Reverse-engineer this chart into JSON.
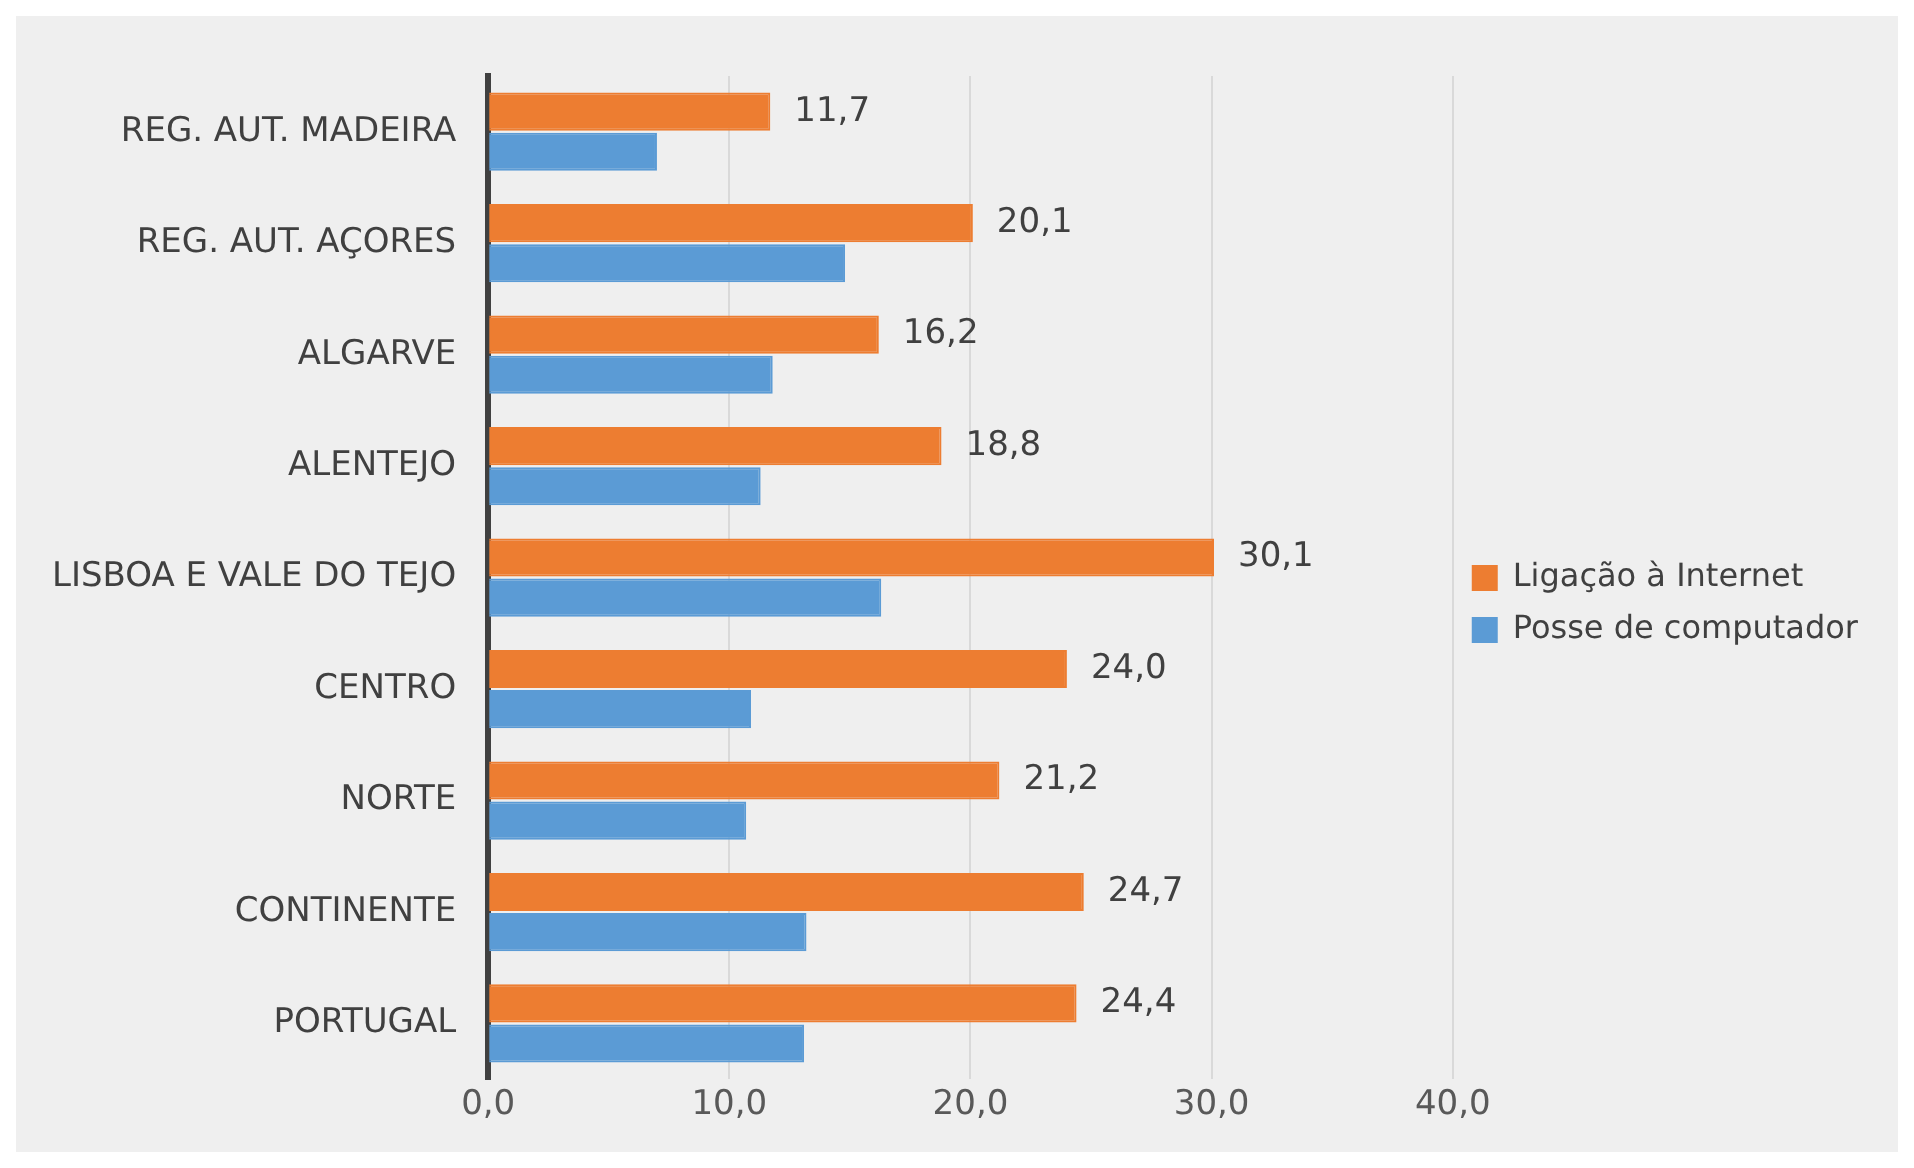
{
  "chart_data": {
    "type": "bar",
    "orientation": "horizontal",
    "categories": [
      "REG. AUT. MADEIRA",
      "REG. AUT. AÇORES",
      "ALGARVE",
      "ALENTEJO",
      "LISBOA E VALE DO TEJO",
      "CENTRO",
      "NORTE",
      "CONTINENTE",
      "PORTUGAL"
    ],
    "series": [
      {
        "name": "Ligação à Internet",
        "color": "#ed7d31",
        "values": [
          11.7,
          20.1,
          16.2,
          18.8,
          30.1,
          24.0,
          21.2,
          24.7,
          24.4
        ],
        "value_labels": [
          "11,7",
          "20,1",
          "16,2",
          "18,8",
          "30,1",
          "24,0",
          "21,2",
          "24,7",
          "24,4"
        ]
      },
      {
        "name": "Posse de computador",
        "color": "#5b9bd5",
        "values": [
          7.0,
          14.8,
          11.8,
          11.3,
          16.3,
          10.9,
          10.7,
          13.2,
          13.1
        ]
      }
    ],
    "xlim": [
      0,
      40
    ],
    "xticks": [
      {
        "value": 0,
        "label": "0,0"
      },
      {
        "value": 10,
        "label": "10,0"
      },
      {
        "value": 20,
        "label": "20,0"
      },
      {
        "value": 30,
        "label": "30,0"
      },
      {
        "value": 40,
        "label": "40,0"
      }
    ],
    "grid": "x",
    "legend": "right"
  }
}
